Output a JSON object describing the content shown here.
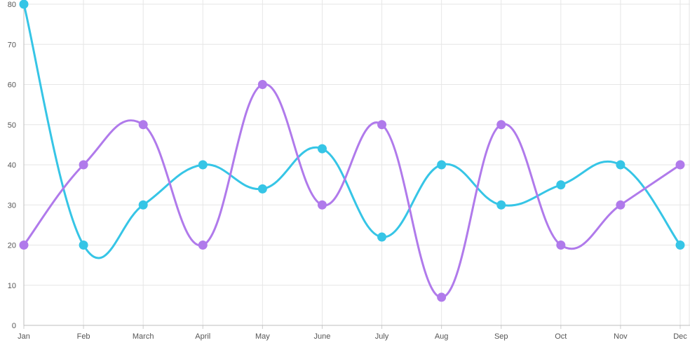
{
  "chart_data": {
    "type": "line",
    "categories": [
      "Jan",
      "Feb",
      "March",
      "April",
      "May",
      "June",
      "July",
      "Aug",
      "Sep",
      "Oct",
      "Nov",
      "Dec"
    ],
    "series": [
      {
        "color": "#36c5e6",
        "values": [
          80,
          20,
          30,
          40,
          34,
          44,
          22,
          40,
          30,
          35,
          40,
          20
        ]
      },
      {
        "color": "#b07aeb",
        "values": [
          20,
          40,
          50,
          20,
          60,
          30,
          50,
          7,
          50,
          20,
          30,
          40
        ]
      }
    ],
    "y_ticks": [
      "0",
      "10",
      "20",
      "30",
      "40",
      "50",
      "60",
      "70",
      "80"
    ],
    "ylim": [
      0,
      80
    ],
    "grid": true,
    "smooth": true
  }
}
